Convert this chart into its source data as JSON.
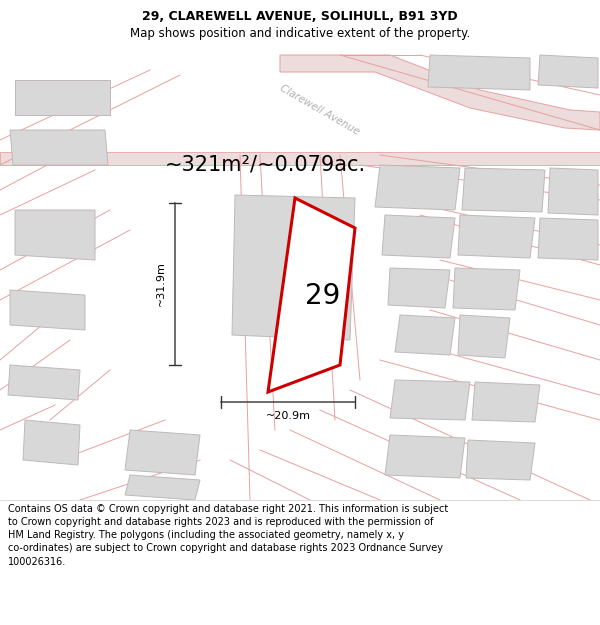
{
  "title_line1": "29, CLAREWELL AVENUE, SOLIHULL, B91 3YD",
  "title_line2": "Map shows position and indicative extent of the property.",
  "area_text": "~321m²/~0.079ac.",
  "number_label": "29",
  "dim_width": "~20.9m",
  "dim_height": "~31.9m",
  "road_label": "Clarewell Avenue",
  "footer_line1": "Contains OS data © Crown copyright and database right 2021. This information is subject",
  "footer_line2": "to Crown copyright and database rights 2023 and is reproduced with the permission of",
  "footer_line3": "HM Land Registry. The polygons (including the associated geometry, namely x, y",
  "footer_line4": "co-ordinates) are subject to Crown copyright and database rights 2023 Ordnance Survey",
  "footer_line5": "100026316.",
  "bg_color": "#f5eeee",
  "map_bg": "#f5eeee",
  "plot_outline_color": "#cc0000",
  "building_fill": "#d8d8d8",
  "building_edge": "#c0b8b8",
  "road_line_color": "#e8a0a0",
  "dim_line_color": "#333333",
  "text_color": "#000000",
  "road_text_color": "#b0b0b0",
  "title_fontsize": 9,
  "subtitle_fontsize": 8.5,
  "area_fontsize": 15,
  "number_fontsize": 20,
  "dim_fontsize": 8,
  "footer_fontsize": 7
}
